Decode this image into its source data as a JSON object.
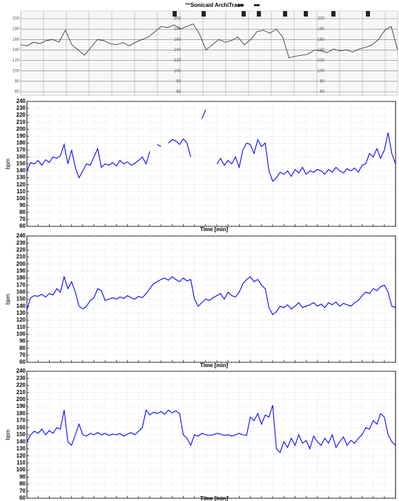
{
  "chart_data": [
    {
      "type": "line",
      "title": "™Sonicaid ArchiTrace",
      "color": "#222222",
      "grid": true,
      "ylim": [
        60,
        200
      ],
      "yticks": [
        60,
        80,
        100,
        120,
        140,
        160,
        180,
        200
      ],
      "values": [
        150,
        148,
        155,
        152,
        158,
        160,
        155,
        178,
        150,
        140,
        130,
        145,
        160,
        158,
        152,
        150,
        154,
        148,
        155,
        160,
        165,
        175,
        185,
        183,
        188,
        180,
        185,
        190,
        170,
        140,
        150,
        160,
        155,
        158,
        165,
        150,
        160,
        175,
        178,
        172,
        180,
        165,
        125,
        128,
        130,
        132,
        140,
        138,
        135,
        142,
        138,
        140,
        136,
        142,
        145,
        150,
        160,
        178,
        185,
        140
      ]
    },
    {
      "type": "line",
      "ylabel": "bpm",
      "xlabel": "Time [min]",
      "color": "#0000ff",
      "grid": true,
      "ylim": [
        60,
        240
      ],
      "yticks": [
        60,
        70,
        80,
        90,
        100,
        110,
        120,
        130,
        140,
        150,
        160,
        170,
        180,
        190,
        200,
        210,
        220,
        230,
        240
      ],
      "values": [
        140,
        152,
        150,
        155,
        148,
        156,
        152,
        160,
        158,
        162,
        178,
        150,
        170,
        145,
        130,
        140,
        150,
        148,
        160,
        172,
        145,
        150,
        148,
        152,
        147,
        155,
        150,
        153,
        148,
        151,
        155,
        160,
        150,
        168,
        null,
        178,
        175,
        null,
        180,
        185,
        183,
        178,
        186,
        180,
        160,
        null,
        null,
        215,
        228,
        null,
        null,
        150,
        158,
        148,
        155,
        150,
        160,
        145,
        170,
        180,
        178,
        165,
        185,
        175,
        180,
        140,
        125,
        130,
        138,
        135,
        140,
        132,
        142,
        137,
        145,
        135,
        140,
        138,
        142,
        140,
        135,
        142,
        138,
        145,
        140,
        137,
        143,
        140,
        144,
        138,
        148,
        150,
        165,
        160,
        172,
        158,
        170,
        195,
        165,
        150
      ]
    },
    {
      "type": "line",
      "ylabel": "bpm",
      "xlabel": "Time [min]",
      "color": "#0000ff",
      "grid": true,
      "ylim": [
        60,
        240
      ],
      "yticks": [
        60,
        70,
        80,
        90,
        100,
        110,
        120,
        130,
        140,
        150,
        160,
        170,
        180,
        190,
        200,
        210,
        220,
        230,
        240
      ],
      "values": [
        135,
        152,
        155,
        154,
        157,
        153,
        158,
        156,
        165,
        160,
        182,
        165,
        175,
        160,
        140,
        136,
        140,
        148,
        152,
        165,
        162,
        148,
        150,
        152,
        150,
        153,
        151,
        155,
        152,
        150,
        154,
        152,
        158,
        165,
        172,
        175,
        178,
        180,
        177,
        182,
        178,
        175,
        180,
        176,
        178,
        150,
        140,
        145,
        150,
        148,
        152,
        155,
        158,
        150,
        160,
        155,
        153,
        160,
        172,
        178,
        182,
        175,
        178,
        170,
        165,
        138,
        128,
        132,
        140,
        138,
        142,
        136,
        140,
        145,
        138,
        140,
        142,
        145,
        140,
        143,
        138,
        145,
        142,
        146,
        140,
        144,
        142,
        140,
        145,
        148,
        155,
        160,
        158,
        165,
        162,
        168,
        170,
        160,
        140,
        138
      ]
    },
    {
      "type": "line",
      "ylabel": "bpm",
      "xlabel": "Time [min]",
      "color": "#0000ff",
      "grid": true,
      "ylim": [
        60,
        240
      ],
      "yticks": [
        60,
        70,
        80,
        90,
        100,
        110,
        120,
        130,
        140,
        150,
        160,
        170,
        180,
        190,
        200,
        210,
        220,
        230,
        240
      ],
      "values": [
        140,
        150,
        155,
        152,
        158,
        150,
        156,
        152,
        160,
        158,
        185,
        140,
        135,
        150,
        165,
        150,
        148,
        152,
        150,
        153,
        150,
        152,
        149,
        151,
        150,
        152,
        148,
        151,
        153,
        150,
        155,
        160,
        185,
        178,
        182,
        180,
        183,
        179,
        185,
        181,
        184,
        180,
        150,
        145,
        135,
        150,
        148,
        152,
        150,
        149,
        150,
        152,
        151,
        149,
        150,
        148,
        150,
        152,
        150,
        149,
        175,
        170,
        180,
        165,
        178,
        175,
        192,
        130,
        125,
        140,
        132,
        145,
        135,
        150,
        138,
        142,
        130,
        148,
        140,
        135,
        145,
        138,
        150,
        132,
        140,
        147,
        135,
        142,
        138,
        145,
        150,
        160,
        158,
        170,
        165,
        180,
        175,
        150,
        140,
        135
      ]
    }
  ]
}
